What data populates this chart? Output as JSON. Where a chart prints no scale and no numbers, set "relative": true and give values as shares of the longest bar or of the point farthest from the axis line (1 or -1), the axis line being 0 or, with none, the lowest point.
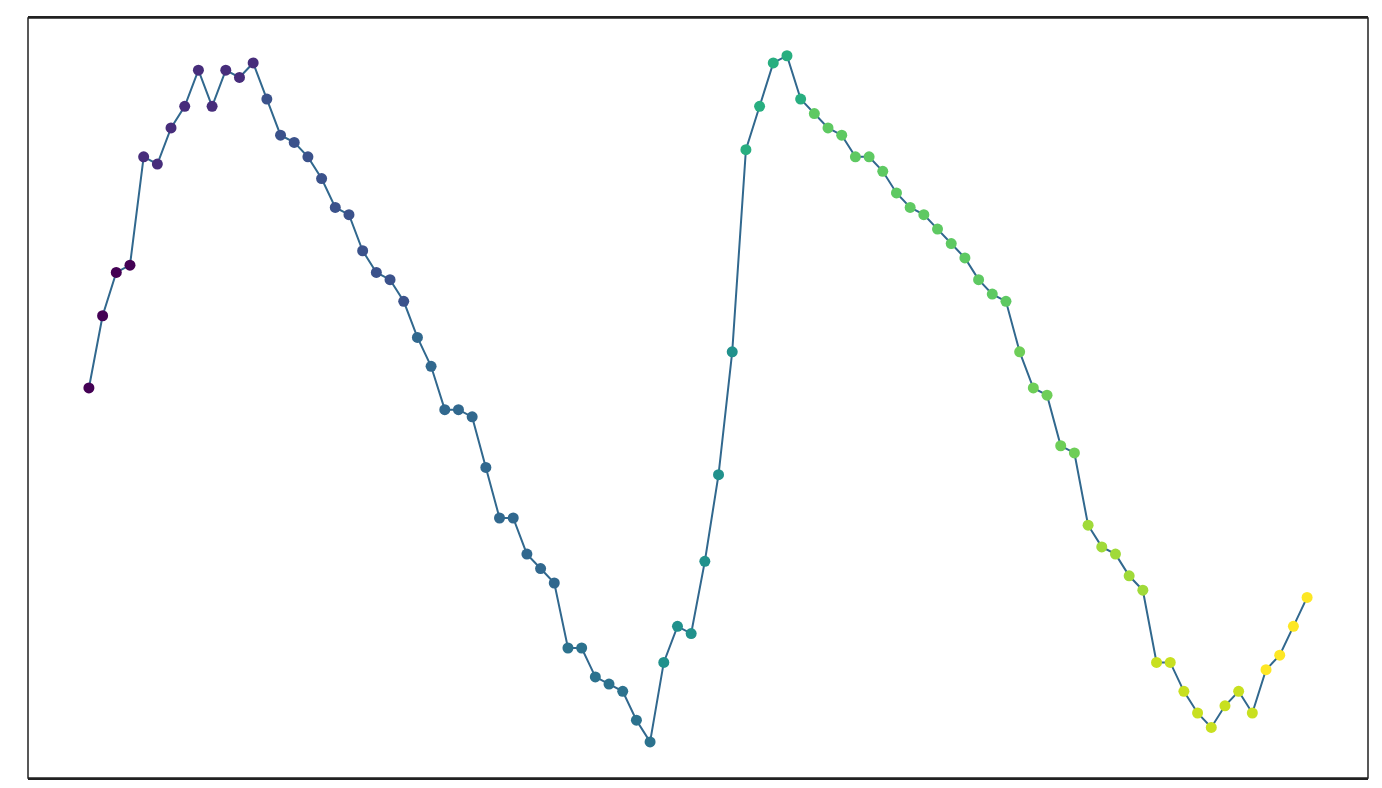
{
  "chart_data": {
    "type": "line",
    "relative": true,
    "marker": "circle",
    "line_style": "solid",
    "categories": [
      null,
      null,
      null,
      null,
      null,
      null,
      null,
      null,
      null,
      null,
      null,
      null,
      null,
      null,
      null,
      null,
      null,
      null,
      null,
      null,
      null,
      null,
      null,
      null,
      null,
      null,
      null,
      null,
      null,
      null,
      null,
      null,
      null,
      null,
      null,
      null,
      null,
      null,
      null,
      null,
      null,
      null,
      null,
      null,
      null,
      null,
      null,
      null,
      null,
      null,
      null,
      null,
      null,
      null,
      null,
      null,
      null,
      null,
      null,
      null,
      null,
      null,
      null,
      null,
      null,
      null,
      null,
      null,
      null,
      null,
      null,
      null,
      null,
      null,
      null,
      null,
      null,
      null,
      null,
      null,
      null,
      null,
      null,
      null,
      null,
      null,
      null,
      null,
      null,
      null
    ],
    "series": [
      {
        "color": "#31688e",
        "values": [
          0.54,
          0.64,
          0.7,
          0.71,
          0.86,
          0.85,
          0.9,
          0.93,
          0.98,
          0.93,
          0.98,
          0.97,
          0.99,
          0.94,
          0.89,
          0.88,
          0.86,
          0.83,
          0.79,
          0.78,
          0.73,
          0.7,
          0.69,
          0.66,
          0.61,
          0.57,
          0.51,
          0.51,
          0.5,
          0.43,
          0.36,
          0.36,
          0.31,
          0.29,
          0.27,
          0.18,
          0.18,
          0.14,
          0.13,
          0.12,
          0.08,
          0.05,
          0.16,
          0.21,
          0.2,
          0.3,
          0.42,
          0.59,
          0.87,
          0.93,
          0.99,
          1.0,
          0.94,
          0.92,
          0.9,
          0.89,
          0.86,
          0.86,
          0.84,
          0.81,
          0.79,
          0.78,
          0.76,
          0.74,
          0.72,
          0.69,
          0.67,
          0.66,
          0.59,
          0.54,
          0.53,
          0.46,
          0.45,
          0.35,
          0.32,
          0.31,
          0.28,
          0.26,
          0.16,
          0.16,
          0.12,
          0.09,
          0.07,
          0.1,
          0.12,
          0.09,
          0.15,
          0.17,
          0.21,
          0.25
        ],
        "colors": [
          "#440154",
          "#440154",
          "#440154",
          "#440154",
          "#472d7b",
          "#472d7b",
          "#472d7b",
          "#472d7b",
          "#472d7b",
          "#472d7b",
          "#472d7b",
          "#472d7b",
          "#472d7b",
          "#3b528b",
          "#3b528b",
          "#3b528b",
          "#3b528b",
          "#3b528b",
          "#3b528b",
          "#3b528b",
          "#3b528b",
          "#3b528b",
          "#3b528b",
          "#3b528b",
          "#31688e",
          "#31688e",
          "#31688e",
          "#31688e",
          "#31688e",
          "#31688e",
          "#31688e",
          "#31688e",
          "#31688e",
          "#31688e",
          "#31688e",
          "#2c728e",
          "#2c728e",
          "#2c728e",
          "#2c728e",
          "#2c728e",
          "#2c728e",
          "#2c728e",
          "#21918c",
          "#21918c",
          "#21918c",
          "#21918c",
          "#21918c",
          "#21918c",
          "#28ae80",
          "#28ae80",
          "#28ae80",
          "#28ae80",
          "#28ae80",
          "#5ec962",
          "#5ec962",
          "#5ec962",
          "#5ec962",
          "#5ec962",
          "#5ec962",
          "#5ec962",
          "#5ec962",
          "#5ec962",
          "#5ec962",
          "#5ec962",
          "#5ec962",
          "#5ec962",
          "#5ec962",
          "#5ec962",
          "#6ece58",
          "#6ece58",
          "#6ece58",
          "#6ece58",
          "#6ece58",
          "#a0da39",
          "#a0da39",
          "#a0da39",
          "#a0da39",
          "#a0da39",
          "#c8e020",
          "#c8e020",
          "#c8e020",
          "#c8e020",
          "#c8e020",
          "#c8e020",
          "#c8e020",
          "#c8e020",
          "#fde725",
          "#fde725",
          "#fde725",
          "#fde725"
        ]
      }
    ]
  }
}
